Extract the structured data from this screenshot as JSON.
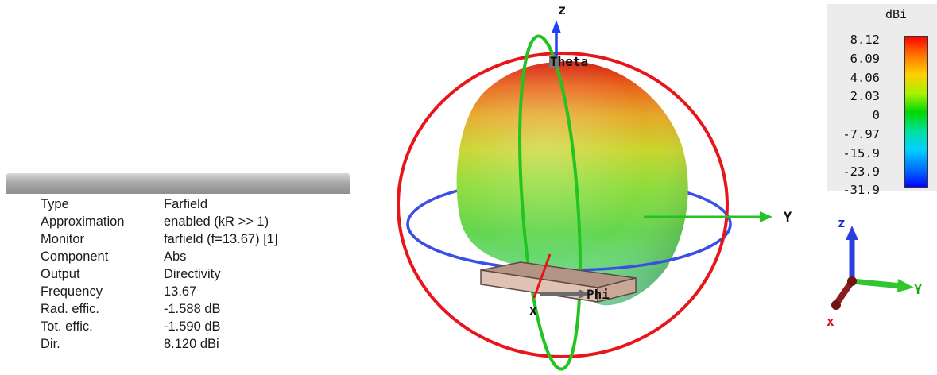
{
  "info": {
    "rows": [
      {
        "key": "Type",
        "value": "Farfield"
      },
      {
        "key": "Approximation",
        "value": "enabled (kR >> 1)"
      },
      {
        "key": "Monitor",
        "value": "farfield (f=13.67) [1]"
      },
      {
        "key": "Component",
        "value": "Abs"
      },
      {
        "key": "Output",
        "value": "Directivity"
      },
      {
        "key": "Frequency",
        "value": "13.67"
      },
      {
        "key": "Rad. effic.",
        "value": "-1.588 dB"
      },
      {
        "key": "Tot. effic.",
        "value": "-1.590 dB"
      },
      {
        "key": "Dir.",
        "value": "8.120 dBi"
      }
    ]
  },
  "legend": {
    "unit": "dBi",
    "ticks": [
      "8.12",
      "6.09",
      "4.06",
      "2.03",
      "0",
      "-7.97",
      "-15.9",
      "-23.9",
      "-31.9"
    ],
    "colors": [
      "#ff0000",
      "#ff7a00",
      "#ffd000",
      "#a8f000",
      "#00d800",
      "#00e0a0",
      "#00d0ff",
      "#0070ff",
      "#0000ff"
    ]
  },
  "view": {
    "axis_z": "z",
    "axis_y": "Y",
    "axis_x": "x",
    "theta_label": "Theta",
    "phi_label": "Phi",
    "colors": {
      "ring_theta": "#e8151b",
      "ring_phi": "#3a4fe6",
      "ring_green": "#22c322",
      "axis": "#1e3fff",
      "ground": "#dcb7a6"
    }
  },
  "triad": {
    "z": "z",
    "y": "Y",
    "x": "x"
  }
}
